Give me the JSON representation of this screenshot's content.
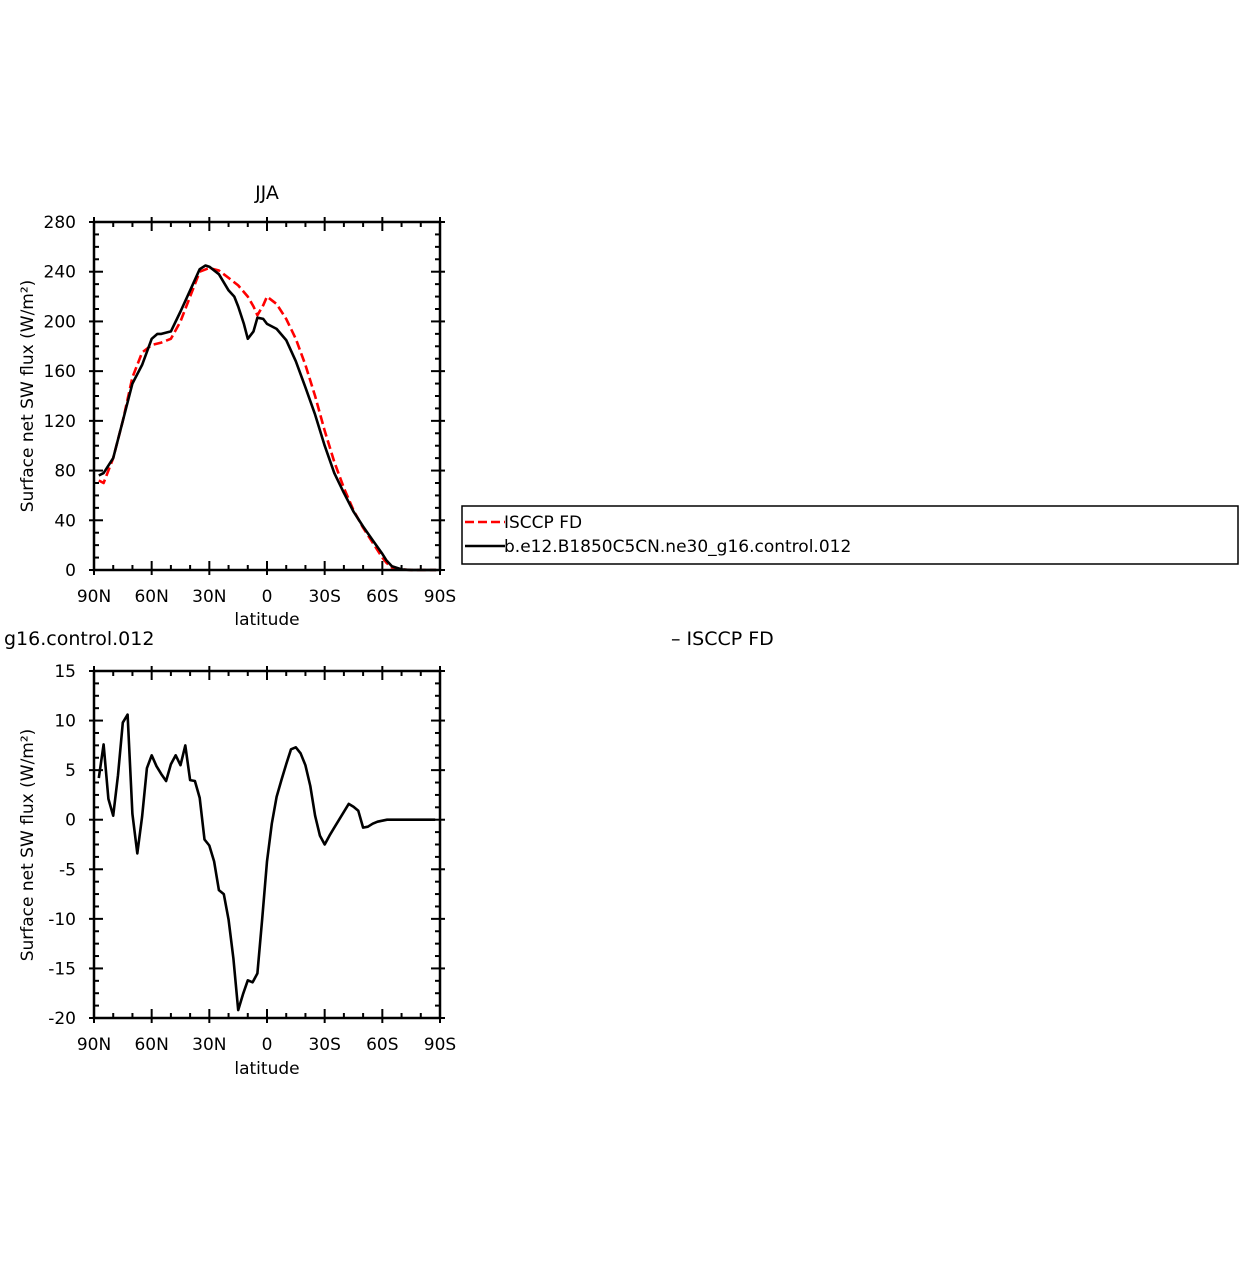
{
  "chart_data": [
    {
      "type": "line",
      "title": "JJA",
      "xlabel": "latitude",
      "ylabel": "Surface net SW flux (W/m²)",
      "xlim": [
        90,
        -90
      ],
      "ylim": [
        0,
        280
      ],
      "x_ticks": [
        {
          "value": 90,
          "label": "90N"
        },
        {
          "value": 60,
          "label": "60N"
        },
        {
          "value": 30,
          "label": "30N"
        },
        {
          "value": 0,
          "label": "0"
        },
        {
          "value": -30,
          "label": "30S"
        },
        {
          "value": -60,
          "label": "60S"
        },
        {
          "value": -90,
          "label": "90S"
        }
      ],
      "y_ticks": [
        0,
        40,
        80,
        120,
        160,
        200,
        240,
        280
      ],
      "legend_position": "right",
      "series": [
        {
          "name": "ISCCP FD",
          "color": "#ff0000",
          "dash": "dashed",
          "x": [
            87.5,
            85,
            80,
            75,
            70,
            65,
            60,
            55,
            50,
            45,
            40,
            35,
            30,
            25,
            20,
            15,
            10,
            7,
            5,
            2,
            0,
            -5,
            -10,
            -15,
            -20,
            -25,
            -30,
            -35,
            -40,
            -45,
            -50,
            -55,
            -60,
            -62,
            -65,
            -70,
            -75,
            -80,
            -85,
            -88
          ],
          "y": [
            72,
            70,
            90,
            120,
            155,
            175,
            181,
            183,
            186,
            200,
            220,
            240,
            243,
            241,
            235,
            229,
            220,
            212,
            205,
            213,
            220,
            214,
            202,
            186,
            165,
            140,
            112,
            87,
            66,
            48,
            34,
            22,
            10,
            6,
            2,
            0.5,
            0,
            0,
            0,
            0
          ]
        },
        {
          "name": "b.e12.B1850C5CN.ne30_g16.control.012",
          "color": "#000000",
          "dash": "solid",
          "x": [
            87.5,
            85,
            80,
            75,
            70,
            65,
            60,
            57,
            55,
            50,
            45,
            40,
            35,
            32,
            30,
            25,
            20,
            17,
            15,
            12,
            10,
            7,
            5,
            2,
            0,
            -5,
            -10,
            -15,
            -20,
            -25,
            -30,
            -35,
            -40,
            -45,
            -50,
            -55,
            -60,
            -62,
            -65,
            -70,
            -75,
            -80,
            -85,
            -88
          ],
          "y": [
            76,
            78,
            90,
            120,
            150,
            165,
            186,
            190,
            190,
            192,
            208,
            225,
            242,
            245,
            244,
            238,
            225,
            220,
            212,
            198,
            186,
            192,
            203,
            202,
            198,
            194,
            185,
            168,
            147,
            125,
            100,
            78,
            62,
            47,
            35,
            24,
            13,
            8,
            3,
            0.5,
            0,
            0,
            0,
            0
          ]
        }
      ]
    },
    {
      "type": "line",
      "title_partial": "g16.control.012",
      "title_right": "– ISCCP FD",
      "xlabel": "latitude",
      "ylabel": "Surface net SW flux (W/m²)",
      "xlim": [
        90,
        -90
      ],
      "ylim": [
        -20,
        15
      ],
      "x_ticks": [
        {
          "value": 90,
          "label": "90N"
        },
        {
          "value": 60,
          "label": "60N"
        },
        {
          "value": 30,
          "label": "30N"
        },
        {
          "value": 0,
          "label": "0"
        },
        {
          "value": -30,
          "label": "30S"
        },
        {
          "value": -60,
          "label": "60S"
        },
        {
          "value": -90,
          "label": "90S"
        }
      ],
      "y_ticks": [
        -20,
        -15,
        -10,
        -5,
        0,
        5,
        10,
        15
      ],
      "series": [
        {
          "name": "",
          "color": "#000000",
          "dash": "solid",
          "x": [
            87.5,
            85,
            82.5,
            80,
            77.5,
            75,
            72.5,
            70,
            67.5,
            65,
            62.5,
            60,
            57.5,
            55,
            52.5,
            50,
            47.5,
            45,
            42.5,
            40,
            37.5,
            35,
            32.5,
            30,
            27.5,
            25,
            22.5,
            20,
            17.5,
            15,
            12.5,
            10,
            7.5,
            5,
            2.5,
            0,
            -2.5,
            -5,
            -7.5,
            -10,
            -12.5,
            -15,
            -17.5,
            -20,
            -22.5,
            -25,
            -27.5,
            -30,
            -32.5,
            -35,
            -37.5,
            -40,
            -42.5,
            -45,
            -47.5,
            -50,
            -52.5,
            -55,
            -57.5,
            -60,
            -62.5,
            -65,
            -67.5,
            -70,
            -72.5,
            -75,
            -77.5,
            -80,
            -82.5,
            -85,
            -87.5
          ],
          "y": [
            4.2,
            7.6,
            2.1,
            0.4,
            4.5,
            9.8,
            10.6,
            0.6,
            -3.4,
            0.3,
            5.2,
            6.5,
            5.4,
            4.6,
            3.9,
            5.6,
            6.5,
            5.5,
            7.5,
            4.0,
            3.9,
            2.2,
            -2.0,
            -2.6,
            -4.2,
            -7.1,
            -7.5,
            -10.1,
            -14.0,
            -19.2,
            -17.6,
            -16.2,
            -16.4,
            -15.5,
            -10.0,
            -4.2,
            -0.4,
            2.3,
            4.0,
            5.6,
            7.1,
            7.3,
            6.7,
            5.5,
            3.4,
            0.4,
            -1.6,
            -2.5,
            -1.6,
            -0.8,
            0.0,
            0.8,
            1.6,
            1.3,
            0.9,
            -0.8,
            -0.7,
            -0.4,
            -0.2,
            -0.1,
            0.0,
            0.0,
            0.0,
            0.0,
            0.0,
            0.0,
            0.0,
            0.0,
            0.0,
            0.0,
            0.0
          ]
        }
      ]
    }
  ]
}
